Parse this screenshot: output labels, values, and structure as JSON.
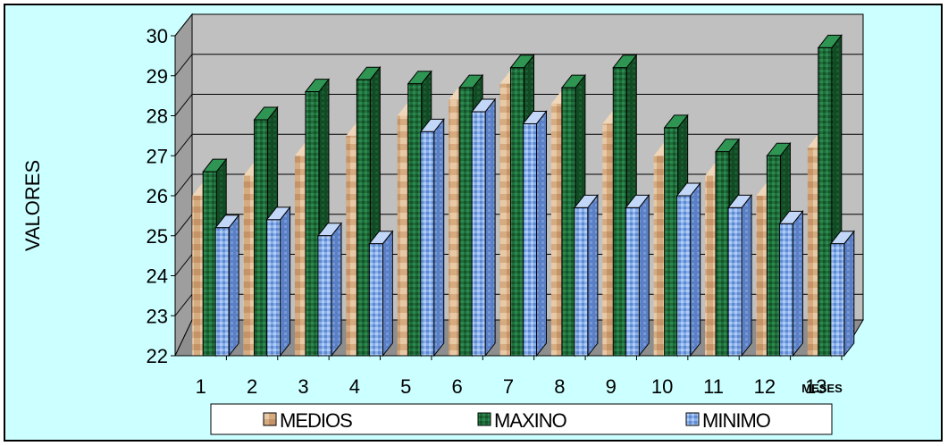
{
  "chart_data": {
    "type": "bar",
    "title": "",
    "xlabel": "MESES",
    "ylabel": "VALORES",
    "ylim": [
      22,
      30
    ],
    "yticks": [
      "22",
      "23",
      "24",
      "25",
      "26",
      "27",
      "28",
      "29",
      "30"
    ],
    "categories": [
      "1",
      "2",
      "3",
      "4",
      "5",
      "6",
      "7",
      "8",
      "9",
      "10",
      "11",
      "12",
      "13"
    ],
    "series": [
      {
        "name": "MEDIOS",
        "values": [
          26.0,
          26.5,
          27.0,
          27.5,
          28.0,
          28.4,
          28.8,
          28.3,
          27.8,
          27.0,
          26.5,
          26.0,
          27.2
        ]
      },
      {
        "name": "MAXINO",
        "values": [
          26.6,
          27.9,
          28.6,
          28.9,
          28.8,
          28.7,
          29.2,
          28.7,
          29.2,
          27.7,
          27.1,
          27.0,
          29.7
        ]
      },
      {
        "name": "MINIMO",
        "values": [
          25.2,
          25.4,
          25.0,
          24.8,
          27.6,
          28.1,
          27.8,
          25.7,
          25.7,
          26.0,
          25.7,
          25.3,
          24.8
        ]
      }
    ],
    "legend_position": "bottom",
    "grid": true,
    "colors": {
      "background": "#ccffff",
      "wall": "#c0c0c0",
      "floor": "#a0a0a0",
      "medios": "#d9b48c",
      "maxino": "#1e6b3c",
      "minimo": "#8fb4ee",
      "frame": "#000000"
    }
  }
}
